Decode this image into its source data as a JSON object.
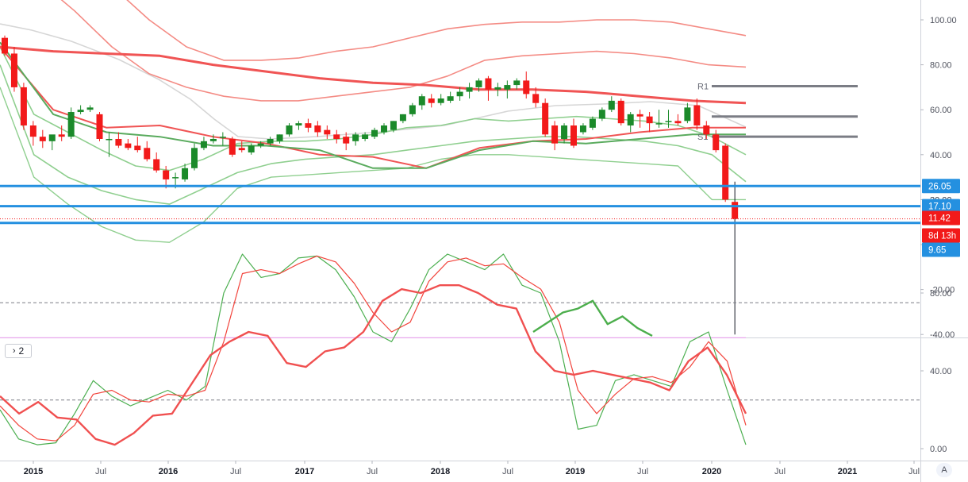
{
  "indicator_toggle": {
    "chevron": "›",
    "count": "2"
  },
  "auto_scale_label": "A",
  "colors": {
    "up": "#1b8a2a",
    "down": "#f21a1a",
    "ma_red": "#f05454",
    "ma_green": "#5aab5e",
    "band_red": "#f48b84",
    "band_green": "#8fcf8f",
    "grey_ma": "#d6d6d6",
    "level_blue": "#2490e0",
    "pivot_grey": "#7b7d85",
    "stoch_k": "#4caf50",
    "stoch_d": "#f2443c",
    "rsi_green": "#4cae4c",
    "rsi_red": "#f05050",
    "pink_line": "#e8a6ec"
  },
  "chart_data": [
    {
      "type": "candlestick",
      "title": "",
      "y_ticks": [
        "100.00",
        "80.00",
        "60.00",
        "40.00",
        "20.00",
        "0.00",
        "-20.00",
        "-40.00"
      ],
      "ylim": [
        -40,
        105
      ],
      "x_ticks": [
        "2015",
        "Jul",
        "2016",
        "Jul",
        "2017",
        "Jul",
        "2018",
        "Jul",
        "2019",
        "Jul",
        "2020",
        "Jul",
        "2021",
        "Jul"
      ],
      "candles": [
        {
          "o": 92,
          "h": 93,
          "c": 85,
          "l": 84
        },
        {
          "o": 85,
          "h": 88,
          "c": 70,
          "l": 68
        },
        {
          "o": 70,
          "h": 72,
          "c": 53,
          "l": 51
        },
        {
          "o": 53,
          "h": 55,
          "c": 48,
          "l": 44
        },
        {
          "o": 48,
          "h": 51,
          "c": 46,
          "l": 43
        },
        {
          "o": 46,
          "h": 48,
          "c": 49,
          "l": 42
        },
        {
          "o": 49,
          "h": 53,
          "c": 48,
          "l": 46
        },
        {
          "o": 48,
          "h": 61,
          "c": 59,
          "l": 47
        },
        {
          "o": 59,
          "h": 62,
          "c": 60,
          "l": 58
        },
        {
          "o": 60,
          "h": 62,
          "c": 61,
          "l": 59
        },
        {
          "o": 58,
          "h": 59,
          "c": 47,
          "l": 46
        },
        {
          "o": 47,
          "h": 50,
          "c": 47,
          "l": 39
        },
        {
          "o": 47,
          "h": 50,
          "c": 44,
          "l": 43
        },
        {
          "o": 45,
          "h": 47,
          "c": 43,
          "l": 42
        },
        {
          "o": 44,
          "h": 48,
          "c": 42,
          "l": 41
        },
        {
          "o": 43,
          "h": 46,
          "c": 38,
          "l": 37
        },
        {
          "o": 38,
          "h": 41,
          "c": 33,
          "l": 32
        },
        {
          "o": 33,
          "h": 35,
          "c": 29,
          "l": 25
        },
        {
          "o": 30,
          "h": 32,
          "c": 30,
          "l": 25
        },
        {
          "o": 29,
          "h": 36,
          "c": 34,
          "l": 28
        },
        {
          "o": 34,
          "h": 45,
          "c": 43,
          "l": 33
        },
        {
          "o": 43,
          "h": 48,
          "c": 46,
          "l": 42
        },
        {
          "o": 46,
          "h": 49,
          "c": 47,
          "l": 45
        },
        {
          "o": 48,
          "h": 50,
          "c": 48,
          "l": 44
        },
        {
          "o": 47,
          "h": 48,
          "c": 40,
          "l": 39
        },
        {
          "o": 43,
          "h": 46,
          "c": 42,
          "l": 41
        },
        {
          "o": 41,
          "h": 45,
          "c": 44,
          "l": 40
        },
        {
          "o": 44,
          "h": 46,
          "c": 45,
          "l": 43
        },
        {
          "o": 45,
          "h": 48,
          "c": 47,
          "l": 44
        },
        {
          "o": 46,
          "h": 49,
          "c": 49,
          "l": 45
        },
        {
          "o": 49,
          "h": 54,
          "c": 53,
          "l": 48
        },
        {
          "o": 53,
          "h": 55,
          "c": 54,
          "l": 51
        },
        {
          "o": 54,
          "h": 56,
          "c": 52,
          "l": 50
        },
        {
          "o": 53,
          "h": 55,
          "c": 50,
          "l": 48
        },
        {
          "o": 51,
          "h": 53,
          "c": 49,
          "l": 47
        },
        {
          "o": 49,
          "h": 51,
          "c": 47,
          "l": 45
        },
        {
          "o": 48,
          "h": 50,
          "c": 45,
          "l": 42
        },
        {
          "o": 46,
          "h": 50,
          "c": 49,
          "l": 44
        },
        {
          "o": 47,
          "h": 50,
          "c": 49,
          "l": 46
        },
        {
          "o": 48,
          "h": 52,
          "c": 51,
          "l": 47
        },
        {
          "o": 50,
          "h": 54,
          "c": 53,
          "l": 49
        },
        {
          "o": 51,
          "h": 55,
          "c": 55,
          "l": 50
        },
        {
          "o": 55,
          "h": 58,
          "c": 58,
          "l": 54
        },
        {
          "o": 58,
          "h": 63,
          "c": 62,
          "l": 57
        },
        {
          "o": 62,
          "h": 67,
          "c": 66,
          "l": 60
        },
        {
          "o": 65,
          "h": 67,
          "c": 63,
          "l": 61
        },
        {
          "o": 63,
          "h": 67,
          "c": 65,
          "l": 62
        },
        {
          "o": 64,
          "h": 68,
          "c": 66,
          "l": 63
        },
        {
          "o": 66,
          "h": 70,
          "c": 68,
          "l": 64
        },
        {
          "o": 68,
          "h": 72,
          "c": 70,
          "l": 65
        },
        {
          "o": 70,
          "h": 74,
          "c": 73,
          "l": 68
        },
        {
          "o": 74,
          "h": 75,
          "c": 69,
          "l": 64
        },
        {
          "o": 69,
          "h": 72,
          "c": 70,
          "l": 66
        },
        {
          "o": 69,
          "h": 73,
          "c": 71,
          "l": 65
        },
        {
          "o": 71,
          "h": 74,
          "c": 73,
          "l": 69
        },
        {
          "o": 73,
          "h": 77,
          "c": 67,
          "l": 65
        },
        {
          "o": 67,
          "h": 70,
          "c": 63,
          "l": 61
        },
        {
          "o": 63,
          "h": 65,
          "c": 49,
          "l": 48
        },
        {
          "o": 53,
          "h": 55,
          "c": 45,
          "l": 42
        },
        {
          "o": 47,
          "h": 54,
          "c": 53,
          "l": 45
        },
        {
          "o": 53,
          "h": 56,
          "c": 44,
          "l": 43
        },
        {
          "o": 50,
          "h": 54,
          "c": 53,
          "l": 49
        },
        {
          "o": 52,
          "h": 57,
          "c": 56,
          "l": 51
        },
        {
          "o": 56,
          "h": 61,
          "c": 60,
          "l": 55
        },
        {
          "o": 60,
          "h": 66,
          "c": 64,
          "l": 59
        },
        {
          "o": 64,
          "h": 65,
          "c": 54,
          "l": 53
        },
        {
          "o": 53,
          "h": 59,
          "c": 58,
          "l": 50
        },
        {
          "o": 58,
          "h": 60,
          "c": 57,
          "l": 52
        },
        {
          "o": 57,
          "h": 59,
          "c": 54,
          "l": 50
        },
        {
          "o": 54,
          "h": 60,
          "c": 54,
          "l": 52
        },
        {
          "o": 55,
          "h": 60,
          "c": 55,
          "l": 52
        },
        {
          "o": 55,
          "h": 58,
          "c": 54,
          "l": 53
        },
        {
          "o": 55,
          "h": 63,
          "c": 61,
          "l": 54
        },
        {
          "o": 62,
          "h": 65,
          "c": 53,
          "l": 51
        },
        {
          "o": 53,
          "h": 55,
          "c": 49,
          "l": 47
        },
        {
          "o": 49,
          "h": 51,
          "c": 42,
          "l": 41
        },
        {
          "o": 44,
          "h": 45,
          "c": 20,
          "l": 19
        },
        {
          "o": 19,
          "h": 28,
          "c": 11.42,
          "l": -40
        }
      ],
      "overlays": [
        {
          "name": "",
          "role": "ma_red_thick",
          "values": [
            88,
            86,
            85,
            84,
            80,
            77,
            74,
            72,
            71,
            69,
            69,
            68,
            66,
            64,
            63
          ]
        },
        {
          "name": "",
          "role": "ma_red",
          "values": [
            88,
            60,
            52,
            53,
            48,
            45,
            40,
            39,
            34,
            43,
            46,
            47,
            50,
            52,
            52
          ]
        },
        {
          "name": "",
          "role": "ma_green",
          "values": [
            90,
            58,
            50,
            48,
            44,
            44,
            42,
            34,
            34,
            42,
            46,
            45,
            47,
            49,
            49
          ]
        }
      ],
      "price_levels": [
        {
          "label": "26.05",
          "value": 26.05,
          "color": "#2490e0"
        },
        {
          "label": "17.10",
          "value": 17.1,
          "color": "#2490e0"
        },
        {
          "label": "9.65",
          "value": 9.65,
          "color": "#2490e0"
        },
        {
          "label": "11.42",
          "value": 11.42,
          "color": "#f21a1a"
        }
      ],
      "countdown_label": "8d 13h",
      "pivot_labels": [
        {
          "label": "R1",
          "value": 70.5
        },
        {
          "label": "",
          "value": 57
        },
        {
          "label": "S1",
          "value": 48
        }
      ],
      "partially_hidden_tick": "20.00"
    },
    {
      "type": "line",
      "title": "",
      "y_ticks": [
        "80.00",
        "40.00",
        "0.00"
      ],
      "ylim": [
        -5,
        100
      ],
      "levels": [
        75,
        25
      ],
      "pink_level": 57,
      "series": [
        {
          "name": "",
          "role": "stoch_k",
          "values": [
            20,
            5,
            2,
            3,
            18,
            35,
            27,
            22,
            26,
            30,
            25,
            32,
            80,
            100,
            88,
            90,
            98,
            99,
            92,
            78,
            60,
            55,
            72,
            92,
            100,
            96,
            92,
            100,
            84,
            80,
            55,
            10,
            12,
            35,
            38,
            35,
            32,
            55,
            60,
            30,
            2
          ]
        },
        {
          "name": "",
          "role": "stoch_d",
          "values": [
            22,
            12,
            5,
            4,
            12,
            28,
            30,
            25,
            24,
            28,
            27,
            30,
            55,
            90,
            92,
            90,
            95,
            99,
            96,
            85,
            70,
            60,
            65,
            86,
            96,
            98,
            94,
            95,
            88,
            82,
            65,
            30,
            18,
            28,
            36,
            37,
            34,
            42,
            55,
            45,
            12
          ]
        },
        {
          "name": "",
          "role": "rsi_red",
          "values": [
            27,
            18,
            24,
            16,
            15,
            5,
            2,
            8,
            17,
            18,
            33,
            48,
            55,
            60,
            58,
            44,
            42,
            50,
            52,
            60,
            76,
            82,
            80,
            84,
            84,
            80,
            74,
            72,
            50,
            40,
            38,
            40,
            38,
            36,
            34,
            30,
            45,
            52,
            38,
            18
          ]
        },
        {
          "name": "",
          "role": "rsi_green",
          "values": [
            60,
            65,
            70,
            72,
            76,
            64,
            68,
            62,
            58
          ]
        }
      ]
    }
  ]
}
